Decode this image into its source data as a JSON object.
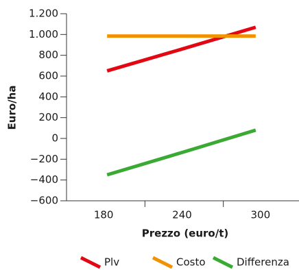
{
  "chart_data": {
    "type": "line",
    "x_label": "Prezzo (euro/t)",
    "y_label": "Euro/ha",
    "categories": [
      "180",
      "240",
      "300"
    ],
    "series": [
      {
        "name": "Plv",
        "color": "#e30613",
        "values": [
          650,
          860,
          1070
        ]
      },
      {
        "name": "Costo",
        "color": "#f39200",
        "values": [
          985,
          985,
          985
        ]
      },
      {
        "name": "Differenza",
        "color": "#3aaa35",
        "values": [
          -350,
          -135,
          80
        ]
      }
    ],
    "ylim": [
      -600,
      1200
    ],
    "yticks": [
      {
        "value": -600,
        "label": "−600"
      },
      {
        "value": -400,
        "label": "−400"
      },
      {
        "value": -200,
        "label": "−200"
      },
      0,
      200,
      400,
      600,
      800,
      {
        "value": 1000,
        "label": "1.000"
      },
      {
        "value": 1200,
        "label": "1.200"
      }
    ],
    "legend": "bottom"
  }
}
